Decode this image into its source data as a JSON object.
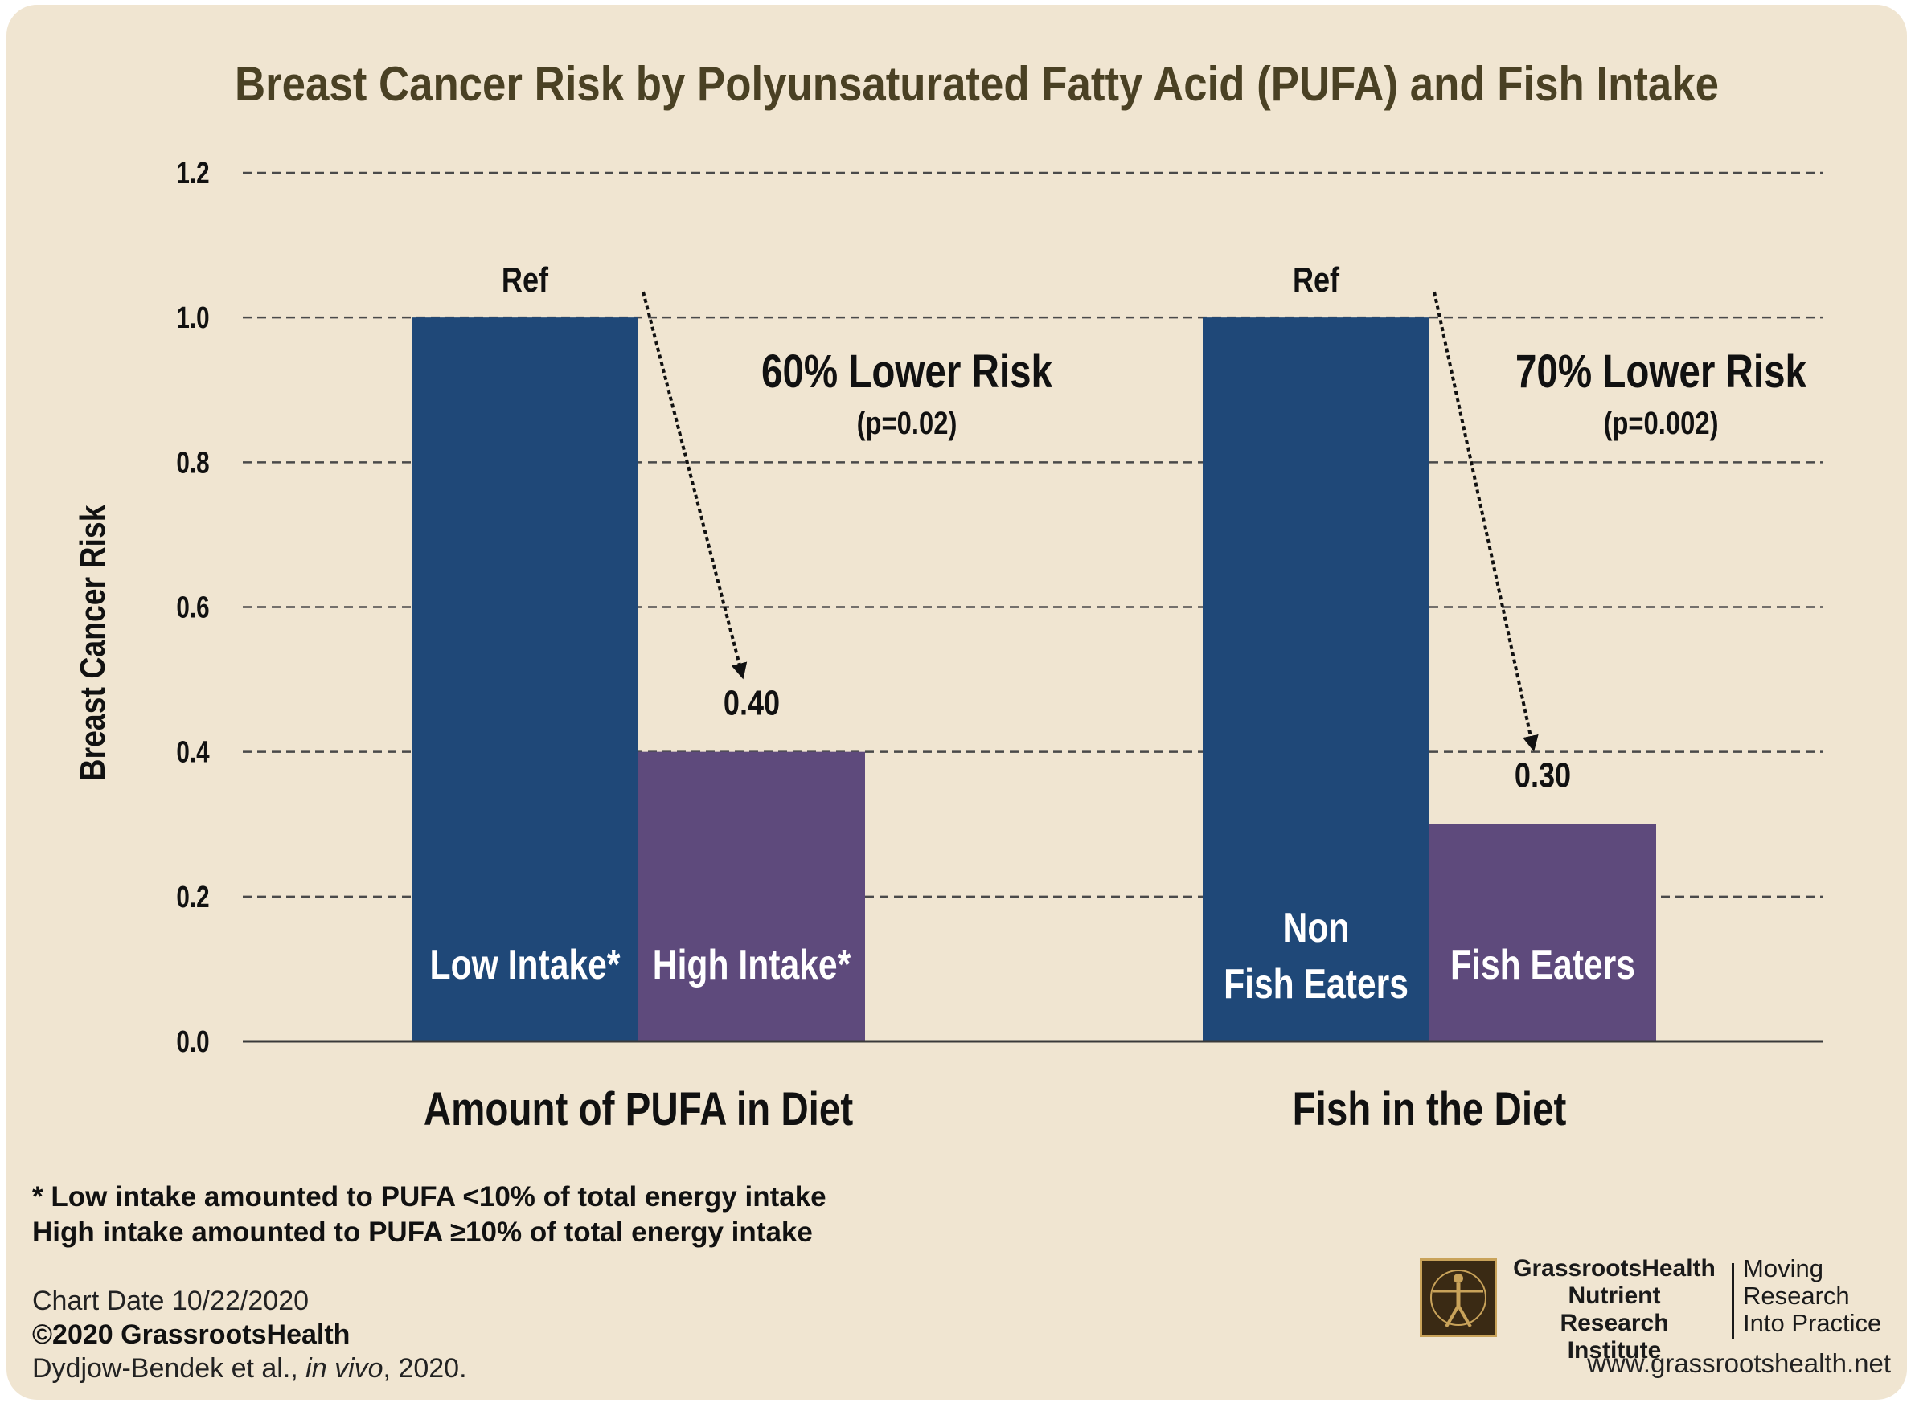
{
  "chart_data": {
    "type": "bar",
    "title": "Breast Cancer Risk by Polyunsaturated Fatty Acid (PUFA) and Fish Intake",
    "ylabel": "Breast Cancer Risk",
    "ylim": [
      0,
      1.2
    ],
    "yticks": [
      "0.0",
      "0.2",
      "0.4",
      "0.6",
      "0.8",
      "1.0",
      "1.2"
    ],
    "grid": true,
    "groups": [
      {
        "label": "Amount of PUFA in Diet",
        "bars": [
          {
            "label": "Low Intake*",
            "value": 1.0,
            "top_label": "Ref",
            "color": "#1f4878"
          },
          {
            "label": "High Intake*",
            "value": 0.4,
            "top_label": "0.40",
            "color": "#5e4a7c"
          }
        ],
        "annotation": "60% Lower Risk",
        "p_value": "(p=0.02)"
      },
      {
        "label": "Fish in the Diet",
        "bars": [
          {
            "label": "Non Fish Eaters",
            "value": 1.0,
            "top_label": "Ref",
            "color": "#1f4878"
          },
          {
            "label": "Fish Eaters",
            "value": 0.3,
            "top_label": "0.30",
            "color": "#5e4a7c"
          }
        ],
        "annotation": "70% Lower Risk",
        "p_value": "(p=0.002)"
      }
    ]
  },
  "footnotes": [
    "* Low intake amounted to PUFA <10% of total energy intake",
    "High intake amounted to PUFA ≥10% of total energy intake"
  ],
  "meta": {
    "chart_date": "Chart Date 10/22/2020",
    "copyright": "©2020 GrassrootsHealth",
    "citation_authors": "Dydjow-Bendek et al., ",
    "citation_journal": "in vivo",
    "citation_year": ", 2020."
  },
  "logo": {
    "org_line1": "GrassrootsHealth",
    "org_line2": "Nutrient",
    "org_line3": "Research Institute",
    "tag_line1": "Moving",
    "tag_line2": "Research",
    "tag_line3": "Into Practice",
    "url": "www.grassrootshealth.net"
  },
  "colors": {
    "background": "#f0e5d1",
    "title": "#4a4124",
    "blue_bar": "#1f4878",
    "purple_bar": "#5e4a7c"
  }
}
